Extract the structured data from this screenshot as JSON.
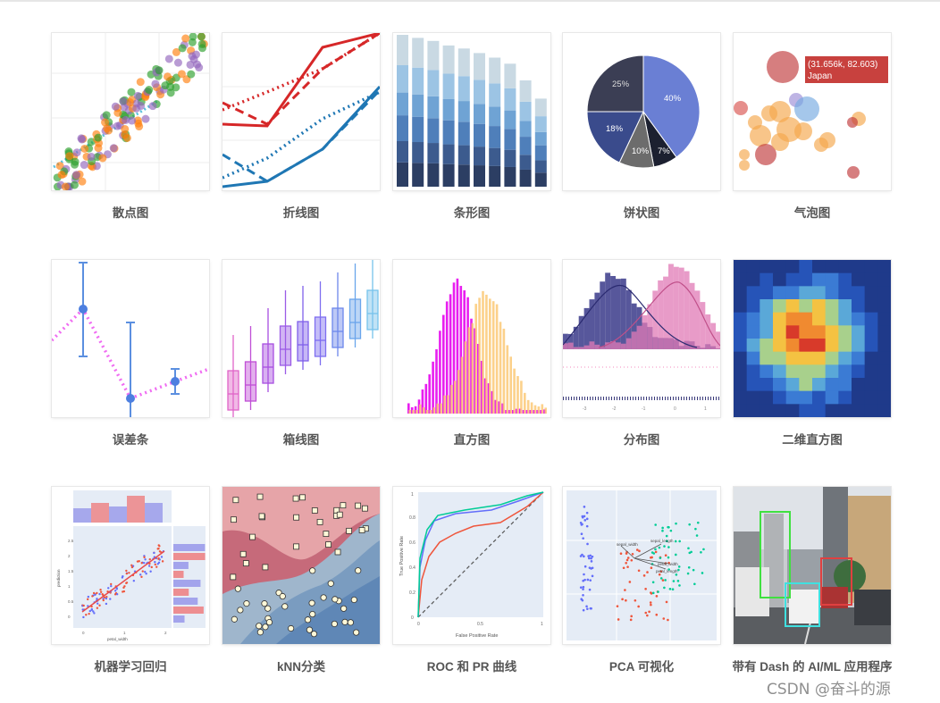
{
  "gallery": [
    {
      "label": "散点图"
    },
    {
      "label": "折线图"
    },
    {
      "label": "条形图"
    },
    {
      "label": "饼状图"
    },
    {
      "label": "气泡图"
    },
    {
      "label": "误差条"
    },
    {
      "label": "箱线图"
    },
    {
      "label": "直方图"
    },
    {
      "label": "分布图"
    },
    {
      "label": "二维直方图"
    },
    {
      "label": "机器学习回归"
    },
    {
      "label": "kNN分类"
    },
    {
      "label": "ROC 和 PR 曲线"
    },
    {
      "label": "PCA 可视化"
    },
    {
      "label": "带有 Dash 的 AI/ML 应用程序"
    }
  ],
  "watermark": "CSDN @奋斗的源",
  "chart_data": [
    {
      "type": "scatter",
      "series": [
        {
          "name": "",
          "color": "#2ca02c"
        },
        {
          "name": "",
          "color": "#ff7f0e"
        },
        {
          "name": "",
          "color": "#9467bd"
        }
      ]
    },
    {
      "type": "line",
      "series": [
        {
          "color": "#d62728",
          "style": "solid",
          "values": [
            3,
            3,
            9,
            10
          ]
        },
        {
          "color": "#d62728",
          "style": "dash",
          "values": [
            4,
            2,
            8,
            10
          ]
        },
        {
          "color": "#d62728",
          "style": "dot",
          "values": [
            5,
            6,
            8,
            10
          ]
        },
        {
          "color": "#1f77b4",
          "style": "solid",
          "values": [
            0,
            0,
            4,
            8
          ]
        },
        {
          "color": "#1f77b4",
          "style": "dash",
          "values": [
            1,
            0,
            3,
            7
          ]
        },
        {
          "color": "#1f77b4",
          "style": "dot",
          "values": [
            1,
            2,
            5,
            7
          ]
        }
      ]
    },
    {
      "type": "bar",
      "stacked": true,
      "values": [
        10,
        9.8,
        9.6,
        9.3,
        9.1,
        8.8,
        8.5,
        8.1,
        7.0,
        5.8
      ]
    },
    {
      "type": "pie",
      "slices": [
        {
          "label": "40%",
          "value": 40,
          "color": "#6a7fd4"
        },
        {
          "label": "7%",
          "value": 7,
          "color": "#1c2030"
        },
        {
          "label": "10%",
          "value": 10,
          "color": "#6c6c6c"
        },
        {
          "label": "18%",
          "value": 18,
          "color": "#3a4b8c"
        },
        {
          "label": "25%",
          "value": 25,
          "color": "#3b3e54"
        }
      ]
    },
    {
      "type": "scatter",
      "annotation": {
        "line1": "(31.656k, 82.603)",
        "line2": "Japan"
      }
    },
    {
      "type": "scatter",
      "error_bars": true
    },
    {
      "type": "box"
    },
    {
      "type": "bar",
      "overlay": "histogram"
    },
    {
      "type": "area",
      "distribution": true,
      "xticks": [
        "-3",
        "-2",
        "-1",
        "0",
        "1"
      ]
    },
    {
      "type": "heatmap"
    },
    {
      "type": "scatter",
      "xlabel": "petal_width",
      "ylabel": "prediction",
      "xticks": [
        "0",
        "1",
        "2"
      ],
      "yticks": [
        "0",
        "0.5",
        "1",
        "1.5",
        "2",
        "2.5"
      ]
    },
    {
      "type": "scatter",
      "classification": "kNN"
    },
    {
      "type": "line",
      "xlabel": "False Positive Rate",
      "ylabel": "True Positive Rate",
      "xticks": [
        "0",
        "0.5",
        "1"
      ],
      "yticks": [
        "0",
        "0.2",
        "0.4",
        "0.6",
        "0.8",
        "1"
      ]
    },
    {
      "type": "scatter",
      "annotations": [
        "sepal_width",
        "sepal_length",
        "petal_length",
        "petal_width"
      ]
    },
    {
      "type": "table",
      "image": "object-detection"
    }
  ]
}
